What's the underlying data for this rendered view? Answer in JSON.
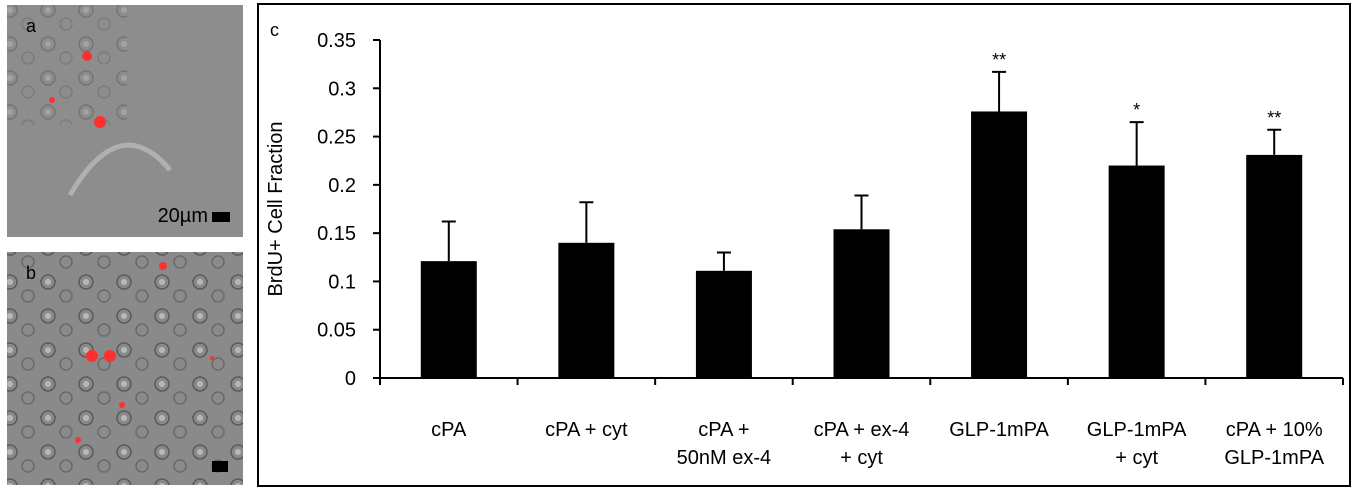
{
  "chart_data": {
    "type": "bar",
    "panel_labels": [
      "a",
      "b",
      "c"
    ],
    "scale_label": "20µm",
    "ylabel": "BrdU+ Cell Fraction",
    "categories": [
      [
        "cPA"
      ],
      [
        "cPA + cyt"
      ],
      [
        "cPA +",
        "50nM ex-4"
      ],
      [
        "cPA + ex-4",
        "+ cyt"
      ],
      [
        "GLP-1mPA"
      ],
      [
        "GLP-1mPA",
        "+ cyt"
      ],
      [
        "cPA + 10%",
        "GLP-1mPA"
      ]
    ],
    "values": [
      0.121,
      0.14,
      0.111,
      0.154,
      0.276,
      0.22,
      0.231
    ],
    "errors": [
      0.041,
      0.042,
      0.019,
      0.035,
      0.041,
      0.045,
      0.026
    ],
    "annotations": [
      null,
      null,
      null,
      null,
      "**",
      "*",
      "**"
    ],
    "color": "#000000",
    "ylim": [
      0,
      0.35
    ],
    "yticks": [
      0,
      0.05,
      0.1,
      0.15,
      0.2,
      0.25,
      0.3,
      0.35
    ],
    "grid": false
  }
}
